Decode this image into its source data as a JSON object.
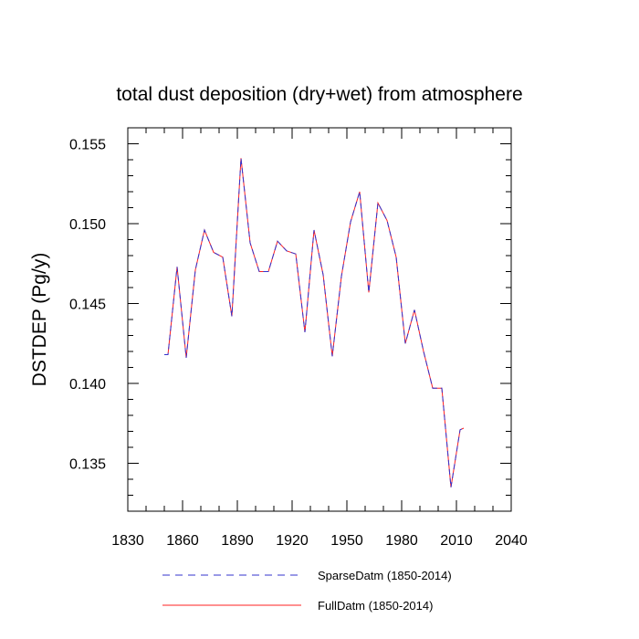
{
  "chart_data": {
    "type": "line",
    "title": "total dust deposition (dry+wet) from atmosphere",
    "xlabel": "",
    "ylabel": "DSTDEP  (Pg/y)",
    "xlim": [
      1830,
      2040
    ],
    "ylim": [
      0.132,
      0.156
    ],
    "x_ticks": [
      1830,
      1860,
      1890,
      1920,
      1950,
      1980,
      2010,
      2040
    ],
    "x_tick_labels": [
      "1830",
      "1860",
      "1890",
      "1920",
      "1950",
      "1980",
      "2010",
      "2040"
    ],
    "y_ticks": [
      0.135,
      0.14,
      0.145,
      0.15,
      0.155
    ],
    "y_tick_labels": [
      "0.135",
      "0.140",
      "0.145",
      "0.150",
      "0.155"
    ],
    "grid": false,
    "legend_position": "bottom",
    "x": [
      1850,
      1852,
      1857,
      1862,
      1867,
      1872,
      1877,
      1882,
      1887,
      1892,
      1897,
      1902,
      1907,
      1912,
      1917,
      1922,
      1927,
      1932,
      1937,
      1942,
      1947,
      1952,
      1957,
      1962,
      1967,
      1972,
      1977,
      1982,
      1987,
      1992,
      1997,
      2002,
      2007,
      2012,
      2014
    ],
    "series": [
      {
        "name": "SparseDatm (1850-2014)",
        "color": "#3333cc",
        "dash": "dashed",
        "values": [
          0.1418,
          0.1418,
          0.1473,
          0.1416,
          0.1471,
          0.1496,
          0.1482,
          0.1479,
          0.1442,
          0.1541,
          0.1488,
          0.147,
          0.147,
          0.1489,
          0.1483,
          0.1481,
          0.1432,
          0.1496,
          0.1468,
          0.1417,
          0.1467,
          0.1501,
          0.152,
          0.1457,
          0.1513,
          0.1502,
          0.1479,
          0.1425,
          0.1446,
          0.142,
          0.1397,
          0.1397,
          0.1335,
          0.1371,
          0.1372
        ]
      },
      {
        "name": "FullDatm (1850-2014)",
        "color": "#ff2222",
        "dash": "solid",
        "values": [
          0.1418,
          0.1418,
          0.1473,
          0.1416,
          0.1471,
          0.1496,
          0.1482,
          0.1479,
          0.1442,
          0.1541,
          0.1488,
          0.147,
          0.147,
          0.1489,
          0.1483,
          0.1481,
          0.1432,
          0.1496,
          0.1468,
          0.1417,
          0.1467,
          0.1501,
          0.152,
          0.1457,
          0.1513,
          0.1502,
          0.1479,
          0.1425,
          0.1446,
          0.142,
          0.1397,
          0.1397,
          0.1335,
          0.1371,
          0.1372
        ]
      }
    ]
  }
}
